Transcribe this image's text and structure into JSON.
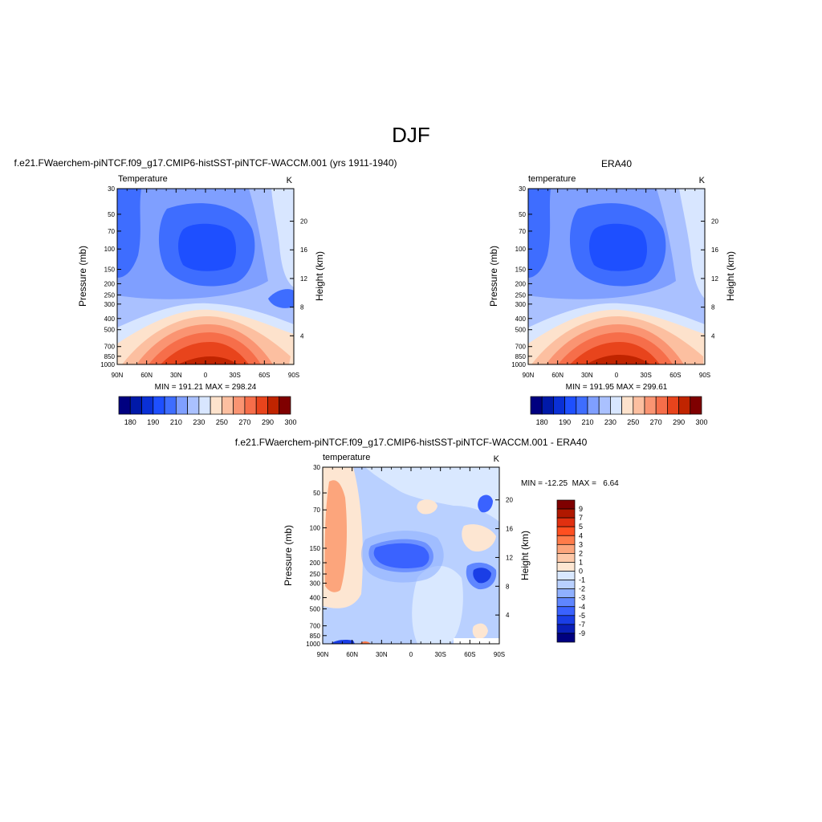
{
  "page": {
    "title": "DJF"
  },
  "chart_data": [
    {
      "type": "contour",
      "title": "f.e21.FWaerchem-piNTCF.f09_g17.CMIP6-histSST-piNTCF-WACCM.001 (yrs 1911-1940)",
      "left_label": "Temperature",
      "right_label": "K",
      "ylabel": "Pressure (mb)",
      "y2label": "Height (km)",
      "xticks": [
        "90N",
        "60N",
        "30N",
        "0",
        "30S",
        "60S",
        "90S"
      ],
      "yticks": [
        "30",
        "50",
        "70",
        "100",
        "150",
        "200",
        "250",
        "300",
        "400",
        "500",
        "700",
        "850",
        "1000"
      ],
      "y2ticks": [
        "4",
        "8",
        "12",
        "16",
        "20"
      ],
      "stats": "MIN = 191.21  MAX = 298.24",
      "colorbar": {
        "orientation": "horizontal",
        "labels": [
          "180",
          "190",
          "210",
          "230",
          "250",
          "270",
          "290",
          "300"
        ],
        "colors": [
          "#000080",
          "#0019a8",
          "#0a30d6",
          "#1e4fff",
          "#3e6dff",
          "#7f9fff",
          "#aac1ff",
          "#d8e6ff",
          "#fde2cc",
          "#fcbfa0",
          "#fa9472",
          "#f66e4a",
          "#e8441c",
          "#c02400",
          "#7f0000"
        ]
      }
    },
    {
      "type": "contour",
      "title": "ERA40",
      "left_label": "temperature",
      "right_label": "K",
      "ylabel": "Pressure (mb)",
      "y2label": "Height (km)",
      "xticks": [
        "90N",
        "60N",
        "30N",
        "0",
        "30S",
        "60S",
        "90S"
      ],
      "yticks": [
        "30",
        "50",
        "70",
        "100",
        "150",
        "200",
        "250",
        "300",
        "400",
        "500",
        "700",
        "850",
        "1000"
      ],
      "y2ticks": [
        "4",
        "8",
        "12",
        "16",
        "20"
      ],
      "stats": "MIN = 191.95  MAX = 299.61",
      "colorbar": {
        "orientation": "horizontal",
        "labels": [
          "180",
          "190",
          "210",
          "230",
          "250",
          "270",
          "290",
          "300"
        ],
        "colors": [
          "#000080",
          "#0019a8",
          "#0a30d6",
          "#1e4fff",
          "#3e6dff",
          "#7f9fff",
          "#aac1ff",
          "#d8e6ff",
          "#fde2cc",
          "#fcbfa0",
          "#fa9472",
          "#f66e4a",
          "#e8441c",
          "#c02400",
          "#7f0000"
        ]
      }
    },
    {
      "type": "contour",
      "title": "f.e21.FWaerchem-piNTCF.f09_g17.CMIP6-histSST-piNTCF-WACCM.001 - ERA40",
      "left_label": "temperature",
      "right_label": "K",
      "ylabel": "Pressure (mb)",
      "y2label": "Height (km)",
      "xticks": [
        "90N",
        "60N",
        "30N",
        "0",
        "30S",
        "60S",
        "90S"
      ],
      "yticks": [
        "30",
        "50",
        "70",
        "100",
        "150",
        "200",
        "250",
        "300",
        "400",
        "500",
        "700",
        "850",
        "1000"
      ],
      "y2ticks": [
        "4",
        "8",
        "12",
        "16",
        "20"
      ],
      "stats": "MIN = -12.25  MAX =   6.64",
      "colorbar": {
        "orientation": "vertical",
        "labels": [
          "9",
          "7",
          "5",
          "4",
          "3",
          "2",
          "1",
          "0",
          "-1",
          "-2",
          "-3",
          "-4",
          "-5",
          "-7",
          "-9"
        ],
        "colors": [
          "#7f0000",
          "#b01800",
          "#e03010",
          "#ff4f20",
          "#ff7b4a",
          "#fca57c",
          "#fdc8a8",
          "#fde6d2",
          "#d9e8ff",
          "#b9d0ff",
          "#8fb0ff",
          "#5f86ff",
          "#3a62ff",
          "#1a3ee6",
          "#0a1fb8",
          "#000080"
        ]
      }
    }
  ]
}
